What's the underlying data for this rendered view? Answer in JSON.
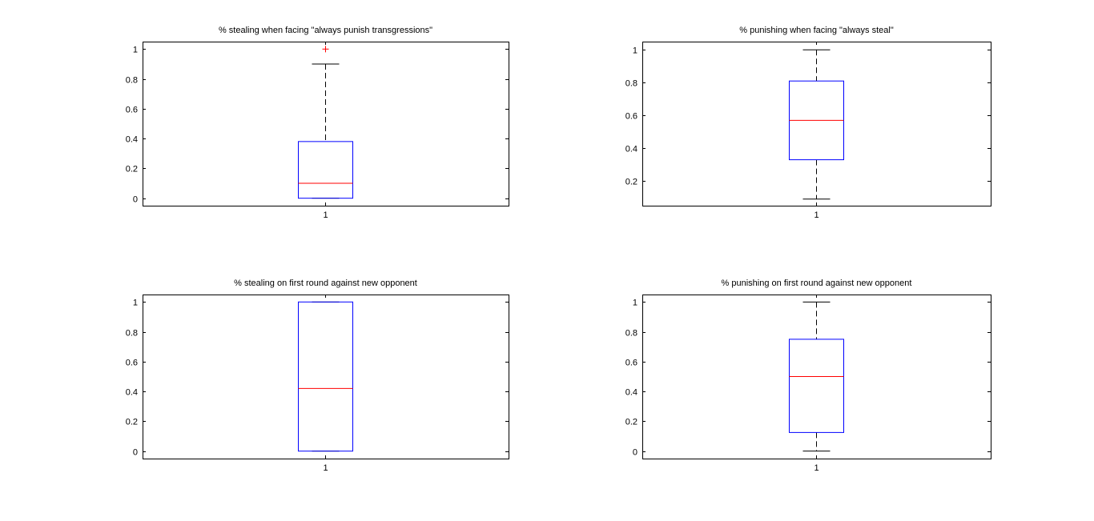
{
  "chart_data": [
    {
      "type": "box",
      "title": "% stealing when facing \"always punish transgressions\"",
      "categories": [
        "1"
      ],
      "ylim": [
        -0.05,
        1.05
      ],
      "yticks": [
        0,
        0.2,
        0.4,
        0.6,
        0.8,
        1
      ],
      "ytick_labels": [
        "0",
        "0.2",
        "0.4",
        "0.6",
        "0.8",
        "1"
      ],
      "box": {
        "whisker_low": 0,
        "q1": 0,
        "median": 0.1,
        "q3": 0.38,
        "whisker_high": 0.9,
        "outliers": [
          1.0
        ]
      }
    },
    {
      "type": "box",
      "title": "% punishing when facing \"always steal\"",
      "categories": [
        "1"
      ],
      "ylim": [
        0.05,
        1.05
      ],
      "yticks": [
        0.2,
        0.4,
        0.6,
        0.8,
        1
      ],
      "ytick_labels": [
        "0.2",
        "0.4",
        "0.6",
        "0.8",
        "1"
      ],
      "box": {
        "whisker_low": 0.09,
        "q1": 0.33,
        "median": 0.57,
        "q3": 0.81,
        "whisker_high": 1.0,
        "outliers": []
      }
    },
    {
      "type": "box",
      "title": "% stealing on first round against new opponent",
      "categories": [
        "1"
      ],
      "ylim": [
        -0.05,
        1.05
      ],
      "yticks": [
        0,
        0.2,
        0.4,
        0.6,
        0.8,
        1
      ],
      "ytick_labels": [
        "0",
        "0.2",
        "0.4",
        "0.6",
        "0.8",
        "1"
      ],
      "box": {
        "whisker_low": 0,
        "q1": 0,
        "median": 0.42,
        "q3": 1.0,
        "whisker_high": 1.0,
        "outliers": []
      }
    },
    {
      "type": "box",
      "title": "% punishing on first round against new opponent",
      "categories": [
        "1"
      ],
      "ylim": [
        -0.05,
        1.05
      ],
      "yticks": [
        0,
        0.2,
        0.4,
        0.6,
        0.8,
        1
      ],
      "ytick_labels": [
        "0",
        "0.2",
        "0.4",
        "0.6",
        "0.8",
        "1"
      ],
      "box": {
        "whisker_low": 0,
        "q1": 0.125,
        "median": 0.5,
        "q3": 0.75,
        "whisker_high": 1.0,
        "outliers": []
      }
    }
  ],
  "colors": {
    "box": "#0000ff",
    "median": "#ff0000",
    "outlier": "#ff0000",
    "whisker": "#000000",
    "axes": "#000000"
  }
}
